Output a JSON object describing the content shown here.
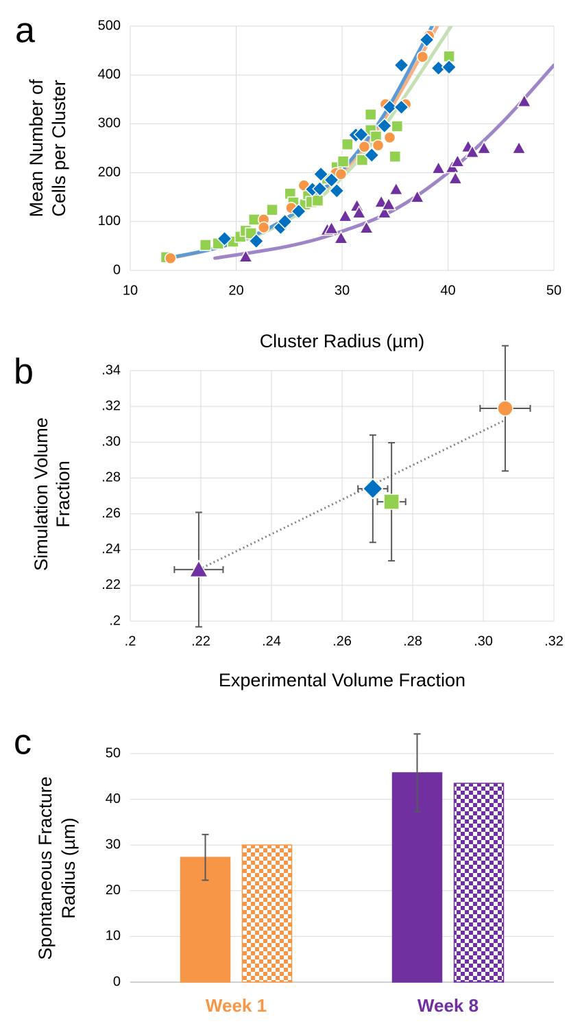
{
  "chart_data": [
    {
      "type": "scatter",
      "panel_label": "a",
      "xlabel": "Cluster Radius (µm)",
      "ylabel": [
        "Mean Number of",
        "Cells per Cluster"
      ],
      "xlim": [
        10,
        50
      ],
      "ylim": [
        0,
        500
      ],
      "xticks": [
        10,
        20,
        30,
        40,
        50
      ],
      "yticks": [
        0,
        100,
        200,
        300,
        400,
        500
      ],
      "grid": true,
      "series": [
        {
          "marker": "square",
          "color": "#92d050",
          "x": [
            13.4,
            17.1,
            18.3,
            19.7,
            20.4,
            20.9,
            21.4,
            21.7,
            23.4,
            25.1,
            25.4,
            26.5,
            26.8,
            27.1,
            27.7,
            28.6,
            29.5,
            30.1,
            30.5,
            31.9,
            32.7,
            32.7,
            33.2,
            35.0,
            35.2,
            40.1
          ],
          "values": [
            27,
            52,
            55,
            59,
            69,
            81,
            76,
            104,
            124,
            157,
            139,
            135,
            156,
            140,
            143,
            188,
            211,
            223,
            258,
            226,
            319,
            287,
            274,
            233,
            295,
            438
          ]
        },
        {
          "marker": "circle",
          "color": "#f79646",
          "x": [
            13.8,
            22.6,
            22.6,
            25.2,
            26.4,
            29.4,
            29.9,
            32.1,
            33.4,
            34.1,
            34.5,
            36.0,
            37.6,
            38.2
          ],
          "values": [
            25,
            104,
            88,
            128,
            174,
            199,
            197,
            253,
            256,
            340,
            272,
            340,
            437,
            480
          ]
        },
        {
          "marker": "diamond",
          "color": "#0070c0",
          "x": [
            18.9,
            21.9,
            24.2,
            24.6,
            25.9,
            27.2,
            28.0,
            27.9,
            29.0,
            29.5,
            31.3,
            31.8,
            32.8,
            34.0,
            34.5,
            35.6,
            35.6,
            38.0,
            39.1,
            40.1
          ],
          "values": [
            65,
            60,
            88,
            100,
            121,
            166,
            197,
            167,
            185,
            163,
            277,
            278,
            236,
            296,
            334,
            334,
            420,
            472,
            414,
            416
          ]
        },
        {
          "marker": "triangle",
          "color": "#7030a0",
          "x": [
            20.9,
            28.6,
            29.0,
            29.9,
            30.3,
            31.4,
            31.6,
            32.3,
            33.7,
            34.0,
            34.4,
            35.1,
            37.1,
            39.1,
            40.4,
            40.7,
            40.9,
            41.9,
            42.3,
            43.4,
            46.7,
            47.2
          ],
          "values": [
            28,
            83,
            86,
            66,
            111,
            132,
            118,
            87,
            140,
            118,
            135,
            166,
            150,
            209,
            211,
            188,
            223,
            253,
            242,
            250,
            250,
            346
          ]
        }
      ],
      "fits": [
        {
          "color": "#c5e0b4",
          "x": [
            13.4,
            18,
            22,
            26,
            30,
            34,
            40.3
          ],
          "values": [
            25,
            45,
            72,
            118,
            190,
            295,
            500
          ]
        },
        {
          "color": "#f4b183",
          "x": [
            13.8,
            18,
            22,
            26,
            30,
            34,
            39
          ],
          "values": [
            25,
            45,
            75,
            125,
            200,
            310,
            500
          ]
        },
        {
          "color": "#5b9bd5",
          "x": [
            13.5,
            18,
            22,
            26,
            30,
            34,
            38.5
          ],
          "values": [
            25,
            45,
            75,
            125,
            205,
            320,
            500
          ]
        },
        {
          "color": "#a084c8",
          "x": [
            18,
            25,
            30,
            35,
            40,
            45,
            50
          ],
          "values": [
            25,
            50,
            80,
            125,
            200,
            300,
            420
          ]
        }
      ]
    },
    {
      "type": "errorbar_scatter",
      "panel_label": "b",
      "xlabel": "Experimental Volume Fraction",
      "ylabel": [
        "Simulation Volume",
        "Fraction"
      ],
      "xlim": [
        0.2,
        0.32
      ],
      "ylim": [
        0.2,
        0.34
      ],
      "xticks": [
        {
          "value": 0.2,
          "label": ".2"
        },
        {
          "value": 0.22,
          "label": ".22"
        },
        {
          "value": 0.24,
          "label": ".24"
        },
        {
          "value": 0.26,
          "label": ".26"
        },
        {
          "value": 0.28,
          "label": ".28"
        },
        {
          "value": 0.3,
          "label": ".30"
        },
        {
          "value": 0.32,
          "label": ".32"
        }
      ],
      "yticks": [
        {
          "value": 0.2,
          "label": ".2"
        },
        {
          "value": 0.22,
          "label": ".22"
        },
        {
          "value": 0.24,
          "label": ".24"
        },
        {
          "value": 0.26,
          "label": ".26"
        },
        {
          "value": 0.28,
          "label": ".28"
        },
        {
          "value": 0.3,
          "label": ".30"
        },
        {
          "value": 0.32,
          "label": ".32"
        },
        {
          "value": 0.34,
          "label": ".34"
        }
      ],
      "grid": true,
      "error_color": "#595959",
      "trendline": {
        "color": "#808080",
        "x": [
          0.2194,
          0.3062
        ],
        "values": [
          0.2288,
          0.3124
        ]
      },
      "series": [
        {
          "marker": "triangle",
          "color": "#7030a0",
          "x": [
            0.2194
          ],
          "values": [
            0.2288
          ],
          "xerrors": [
            0.0069
          ],
          "errors": [
            0.032
          ]
        },
        {
          "marker": "diamond",
          "color": "#0070c0",
          "x": [
            0.2687
          ],
          "values": [
            0.274
          ],
          "xerrors": [
            0.0042
          ],
          "errors": [
            0.03
          ]
        },
        {
          "marker": "square",
          "color": "#92d050",
          "x": [
            0.274
          ],
          "values": [
            0.2667
          ],
          "xerrors": [
            0.004
          ],
          "errors": [
            0.033
          ]
        },
        {
          "marker": "circle",
          "color": "#f79646",
          "x": [
            0.3062
          ],
          "values": [
            0.3189
          ],
          "xerrors": [
            0.0071
          ],
          "errors": [
            0.035
          ]
        }
      ]
    },
    {
      "type": "bar",
      "panel_label": "c",
      "ylabel": [
        "Spontaneous Fracture",
        "Radius (µm)"
      ],
      "categories": [
        "Week 1",
        "Week 8"
      ],
      "category_colors": [
        "#f79646",
        "#7030a0"
      ],
      "ylim": [
        0,
        53
      ],
      "yticks": [
        0,
        10,
        20,
        30,
        40,
        50
      ],
      "grid": true,
      "error_color": "#595959",
      "series": [
        {
          "pattern": "solid",
          "values": [
            27.3,
            45.8
          ],
          "errors": [
            5.0,
            8.5
          ]
        },
        {
          "pattern": "checker",
          "values": [
            30.0,
            43.5
          ]
        }
      ]
    }
  ]
}
